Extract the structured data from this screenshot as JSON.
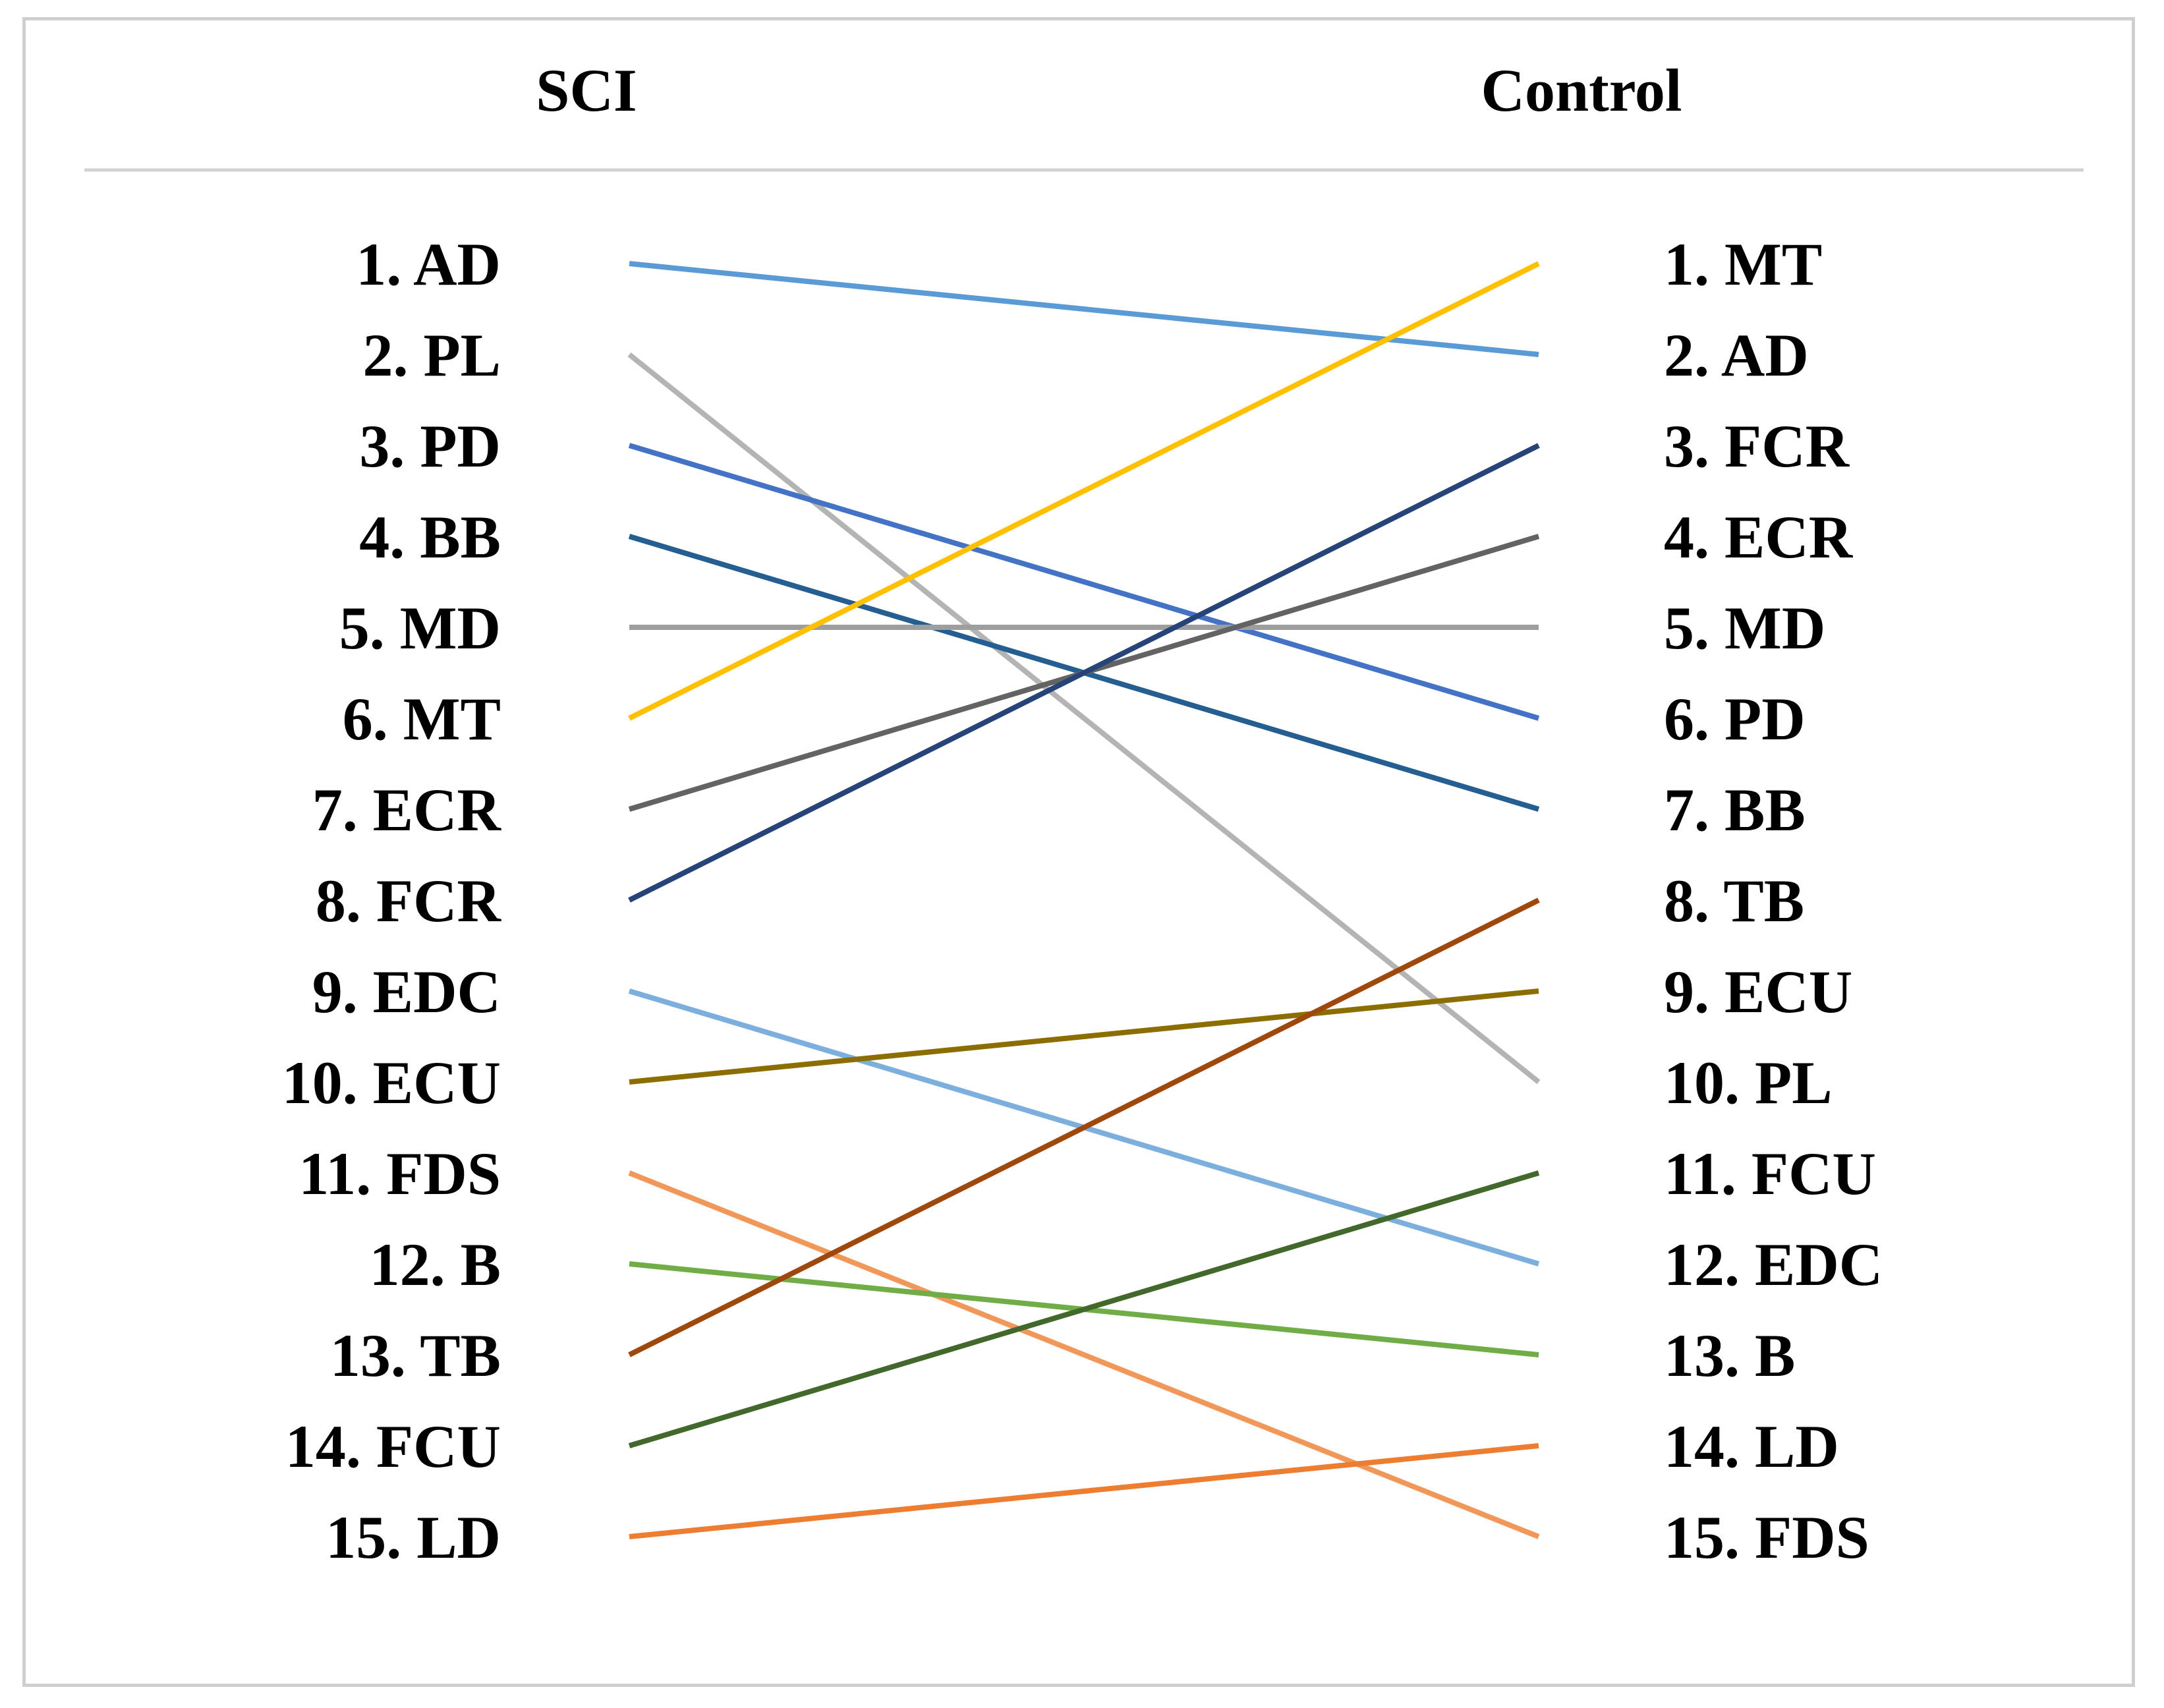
{
  "headers": {
    "left": "SCI",
    "right": "Control"
  },
  "sci_ranking": [
    "1. AD",
    "2. PL",
    "3. PD",
    "4. BB",
    "5. MD",
    "6. MT",
    "7. ECR",
    "8. FCR",
    "9. EDC",
    "10. ECU",
    "11. FDS",
    "12. B",
    "13. TB",
    "14. FCU",
    "15. LD"
  ],
  "control_ranking": [
    "1. MT",
    "2. AD",
    "3. FCR",
    "4. ECR",
    "5. MD",
    "6. PD",
    "7. BB",
    "8. TB",
    "9. ECU",
    "10. PL",
    "11. FCU",
    "12. EDC",
    "13. B",
    "14. LD",
    "15. FDS"
  ],
  "links": [
    {
      "muscle": "AD",
      "sci_rank": 1,
      "control_rank": 2,
      "color": "#5b9bd5"
    },
    {
      "muscle": "PL",
      "sci_rank": 2,
      "control_rank": 10,
      "color": "#b4b4b4"
    },
    {
      "muscle": "PD",
      "sci_rank": 3,
      "control_rank": 6,
      "color": "#4472c4"
    },
    {
      "muscle": "BB",
      "sci_rank": 4,
      "control_rank": 7,
      "color": "#255e91"
    },
    {
      "muscle": "MD",
      "sci_rank": 5,
      "control_rank": 5,
      "color": "#9e9e9e"
    },
    {
      "muscle": "MT",
      "sci_rank": 6,
      "control_rank": 1,
      "color": "#ffc000"
    },
    {
      "muscle": "ECR",
      "sci_rank": 7,
      "control_rank": 4,
      "color": "#636363"
    },
    {
      "muscle": "FCR",
      "sci_rank": 8,
      "control_rank": 3,
      "color": "#264478"
    },
    {
      "muscle": "EDC",
      "sci_rank": 9,
      "control_rank": 12,
      "color": "#7cafdd"
    },
    {
      "muscle": "ECU",
      "sci_rank": 10,
      "control_rank": 9,
      "color": "#8c6d00"
    },
    {
      "muscle": "FDS",
      "sci_rank": 11,
      "control_rank": 15,
      "color": "#f1975a"
    },
    {
      "muscle": "B",
      "sci_rank": 12,
      "control_rank": 13,
      "color": "#70ad47"
    },
    {
      "muscle": "TB",
      "sci_rank": 13,
      "control_rank": 8,
      "color": "#9e480e"
    },
    {
      "muscle": "FCU",
      "sci_rank": 14,
      "control_rank": 11,
      "color": "#43682b"
    },
    {
      "muscle": "LD",
      "sci_rank": 15,
      "control_rank": 14,
      "color": "#ed7d31"
    }
  ]
}
